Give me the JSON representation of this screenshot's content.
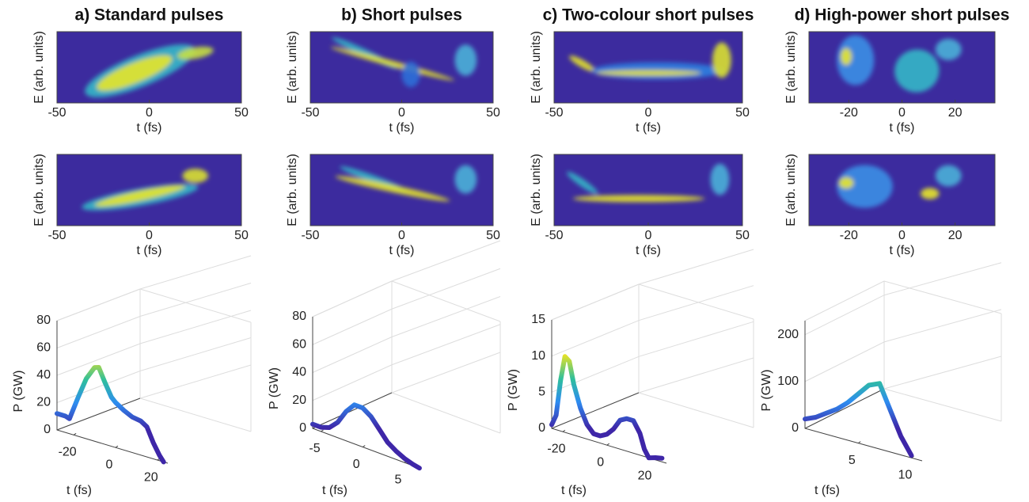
{
  "chart_data": [
    {
      "title": "a) Standard pulses",
      "plots": [
        {
          "type": "heatmap",
          "xlabel": "t (fs)",
          "ylabel": "E (arb. units)",
          "xlim": [
            -50,
            50
          ],
          "xticks": [
            -50,
            0,
            50
          ]
        },
        {
          "type": "heatmap",
          "xlabel": "t (fs)",
          "ylabel": "E (arb. units)",
          "xlim": [
            -50,
            50
          ],
          "xticks": [
            -50,
            0,
            50
          ]
        },
        {
          "type": "waterfall",
          "xlabel": "t (fs)",
          "ylabel": "P (GW)",
          "xlim": [
            -28,
            25
          ],
          "xticks": [
            -20,
            0,
            20
          ],
          "ylim": [
            0,
            80
          ],
          "yticks": [
            0,
            20,
            40,
            60,
            80
          ],
          "x": [
            -28,
            -24,
            -22,
            -18,
            -14,
            -10,
            -8,
            -5,
            -2,
            0,
            4,
            8,
            12,
            15,
            18,
            21,
            23
          ],
          "values": [
            12,
            12,
            11,
            28,
            44,
            54,
            55,
            45,
            36,
            33,
            29,
            26,
            25,
            22,
            12,
            4,
            0
          ]
        }
      ]
    },
    {
      "title": "b) Short pulses",
      "plots": [
        {
          "type": "heatmap",
          "xlabel": "t (fs)",
          "ylabel": "E (arb. units)",
          "xlim": [
            -50,
            50
          ],
          "xticks": [
            -50,
            0,
            50
          ]
        },
        {
          "type": "heatmap",
          "xlabel": "t (fs)",
          "ylabel": "E (arb. units)",
          "xlim": [
            -50,
            50
          ],
          "xticks": [
            -50,
            0,
            50
          ]
        },
        {
          "type": "waterfall",
          "xlabel": "t (fs)",
          "ylabel": "P (GW)",
          "xlim": [
            -6,
            7
          ],
          "xticks": [
            -5,
            0,
            5
          ],
          "ylim": [
            0,
            80
          ],
          "yticks": [
            0,
            20,
            40,
            60,
            80
          ],
          "x": [
            -6,
            -5,
            -4,
            -3,
            -2,
            -1,
            0,
            1,
            2,
            3,
            4,
            5,
            6,
            6.8
          ],
          "values": [
            3,
            3,
            5,
            11,
            21,
            28,
            28,
            24,
            17,
            10,
            6,
            3,
            1,
            0
          ]
        }
      ]
    },
    {
      "title": "c) Two-colour short pulses",
      "plots": [
        {
          "type": "heatmap",
          "xlabel": "t (fs)",
          "ylabel": "E (arb. units)",
          "xlim": [
            -50,
            50
          ],
          "xticks": [
            -50,
            0,
            50
          ]
        },
        {
          "type": "heatmap",
          "xlabel": "t (fs)",
          "ylabel": "E (arb. units)",
          "xlim": [
            -50,
            50
          ],
          "xticks": [
            -50,
            0,
            50
          ]
        },
        {
          "type": "waterfall",
          "xlabel": "t (fs)",
          "ylabel": "P (GW)",
          "xlim": [
            -25,
            27
          ],
          "xticks": [
            -20,
            0,
            20
          ],
          "ylim": [
            0,
            15
          ],
          "yticks": [
            0,
            5,
            10,
            15
          ],
          "x": [
            -25,
            -23,
            -21,
            -19,
            -17,
            -15,
            -12,
            -9,
            -6,
            -3,
            0,
            3,
            6,
            9,
            12,
            15,
            17,
            19,
            22,
            25
          ],
          "values": [
            0.5,
            2,
            7,
            10.5,
            10,
            7,
            4,
            2,
            1,
            1,
            1.5,
            2.5,
            4,
            4.5,
            4.5,
            3,
            1,
            0,
            0.3,
            0.5
          ]
        }
      ]
    },
    {
      "title": "d) High-power short pulses",
      "plots": [
        {
          "type": "heatmap",
          "xlabel": "t (fs)",
          "ylabel": "E (arb. units)",
          "xlim": [
            -35,
            35
          ],
          "xticks": [
            -20,
            0,
            20
          ]
        },
        {
          "type": "heatmap",
          "xlabel": "t (fs)",
          "ylabel": "E (arb. units)",
          "xlim": [
            -35,
            35
          ],
          "xticks": [
            -20,
            0,
            20
          ]
        },
        {
          "type": "waterfall",
          "xlabel": "t (fs)",
          "ylabel": "P (GW)",
          "xlim": [
            0,
            11
          ],
          "xticks": [
            5,
            10
          ],
          "ylim": [
            0,
            230
          ],
          "yticks": [
            0,
            100,
            200
          ],
          "x": [
            0,
            1,
            2,
            3,
            4,
            5,
            6,
            7,
            8,
            9,
            10
          ],
          "values": [
            20,
            30,
            45,
            60,
            80,
            105,
            130,
            140,
            90,
            40,
            5
          ]
        }
      ]
    }
  ]
}
